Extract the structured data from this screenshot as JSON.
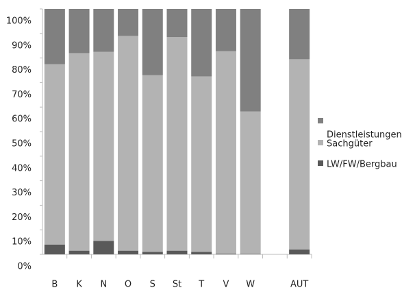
{
  "chart_data": {
    "type": "bar",
    "stacked": true,
    "categories": [
      "B",
      "K",
      "N",
      "O",
      "S",
      "St",
      "T",
      "V",
      "W",
      null,
      "AUT"
    ],
    "series": [
      {
        "name": "LW/FW/Bergbau",
        "color": "#595959",
        "values": [
          4,
          1.5,
          5.5,
          1.5,
          1,
          1.5,
          1,
          0.3,
          0.2,
          null,
          2
        ]
      },
      {
        "name": "Sachgüter",
        "color": "#b3b3b3",
        "values": [
          73.5,
          80.5,
          77,
          87.5,
          72,
          87,
          71.5,
          82.5,
          58,
          null,
          77.5
        ]
      },
      {
        "name": "Dienstleistungen",
        "color": "#808080",
        "values": [
          22.5,
          18,
          17.5,
          11,
          27,
          11.5,
          27.5,
          17.2,
          41.8,
          null,
          20.5
        ]
      }
    ],
    "ylim": [
      0,
      100
    ],
    "yticks": [
      {
        "value": 0,
        "label": "0%"
      },
      {
        "value": 10,
        "label": "10%"
      },
      {
        "value": 20,
        "label": "20%"
      },
      {
        "value": 30,
        "label": "30%"
      },
      {
        "value": 40,
        "label": "40%"
      },
      {
        "value": 50,
        "label": "50%"
      },
      {
        "value": 60,
        "label": "60%"
      },
      {
        "value": 70,
        "label": "70%"
      },
      {
        "value": 80,
        "label": "80%"
      },
      {
        "value": 90,
        "label": "90%"
      },
      {
        "value": 100,
        "label": "100%"
      }
    ],
    "legend": "right"
  }
}
